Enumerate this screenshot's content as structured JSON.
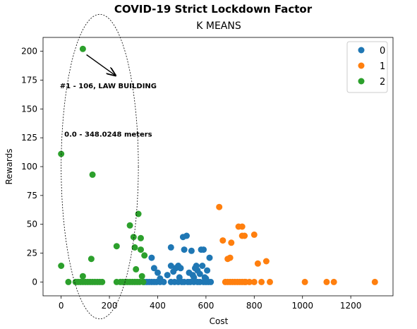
{
  "chart_data": {
    "type": "scatter",
    "title": "COVID-19 Strict Lockdown Factor",
    "subtitle": "K MEANS",
    "xlabel": "Cost",
    "ylabel": "Rewards",
    "xlim": [
      -75,
      1375
    ],
    "ylim": [
      -12,
      212
    ],
    "xticks": [
      0,
      200,
      400,
      600,
      800,
      1000,
      1200
    ],
    "yticks": [
      0,
      25,
      50,
      75,
      100,
      125,
      150,
      175,
      200
    ],
    "grid": false,
    "legend_position": "top-right",
    "series": [
      {
        "name": "0",
        "color": "#1f77b4",
        "points": [
          [
            345,
            0
          ],
          [
            355,
            0
          ],
          [
            365,
            0
          ],
          [
            375,
            0
          ],
          [
            385,
            0
          ],
          [
            395,
            0
          ],
          [
            410,
            0
          ],
          [
            425,
            0
          ],
          [
            455,
            0
          ],
          [
            470,
            0
          ],
          [
            485,
            0
          ],
          [
            500,
            0
          ],
          [
            510,
            0
          ],
          [
            525,
            0
          ],
          [
            535,
            0
          ],
          [
            550,
            0
          ],
          [
            565,
            0
          ],
          [
            575,
            0
          ],
          [
            590,
            0
          ],
          [
            600,
            0
          ],
          [
            610,
            0
          ],
          [
            620,
            0
          ],
          [
            375,
            21
          ],
          [
            385,
            12
          ],
          [
            400,
            8
          ],
          [
            410,
            3
          ],
          [
            440,
            6
          ],
          [
            455,
            30
          ],
          [
            455,
            14
          ],
          [
            465,
            9
          ],
          [
            475,
            12
          ],
          [
            485,
            14
          ],
          [
            495,
            12
          ],
          [
            505,
            39
          ],
          [
            510,
            28
          ],
          [
            520,
            40
          ],
          [
            530,
            8
          ],
          [
            540,
            27
          ],
          [
            550,
            4
          ],
          [
            555,
            12
          ],
          [
            560,
            14
          ],
          [
            565,
            10
          ],
          [
            575,
            7
          ],
          [
            580,
            28
          ],
          [
            590,
            28
          ],
          [
            585,
            14
          ],
          [
            595,
            4
          ],
          [
            605,
            10
          ],
          [
            615,
            21
          ],
          [
            600,
            3
          ],
          [
            545,
            6
          ],
          [
            490,
            4
          ]
        ]
      },
      {
        "name": "1",
        "color": "#ff7f0e",
        "points": [
          [
            655,
            65
          ],
          [
            670,
            36
          ],
          [
            690,
            20
          ],
          [
            700,
            21
          ],
          [
            705,
            34
          ],
          [
            735,
            48
          ],
          [
            750,
            48
          ],
          [
            750,
            40
          ],
          [
            760,
            40
          ],
          [
            800,
            41
          ],
          [
            815,
            16
          ],
          [
            850,
            18
          ],
          [
            680,
            0
          ],
          [
            690,
            0
          ],
          [
            700,
            0
          ],
          [
            710,
            0
          ],
          [
            720,
            0
          ],
          [
            730,
            0
          ],
          [
            740,
            0
          ],
          [
            750,
            0
          ],
          [
            760,
            0
          ],
          [
            765,
            0
          ],
          [
            780,
            0
          ],
          [
            800,
            0
          ],
          [
            830,
            0
          ],
          [
            865,
            0
          ],
          [
            1010,
            0
          ],
          [
            1100,
            0
          ],
          [
            1130,
            0
          ],
          [
            1300,
            0
          ]
        ]
      },
      {
        "name": "2",
        "color": "#2ca02c",
        "points": [
          [
            90,
            202
          ],
          [
            0,
            111
          ],
          [
            130,
            93
          ],
          [
            0,
            14
          ],
          [
            125,
            20
          ],
          [
            230,
            31
          ],
          [
            285,
            49
          ],
          [
            300,
            39
          ],
          [
            305,
            30
          ],
          [
            320,
            59
          ],
          [
            330,
            38
          ],
          [
            330,
            28
          ],
          [
            345,
            23
          ],
          [
            310,
            11
          ],
          [
            335,
            5
          ],
          [
            90,
            5
          ],
          [
            30,
            0
          ],
          [
            60,
            0
          ],
          [
            70,
            0
          ],
          [
            80,
            0
          ],
          [
            90,
            0
          ],
          [
            100,
            0
          ],
          [
            110,
            0
          ],
          [
            120,
            0
          ],
          [
            130,
            0
          ],
          [
            140,
            0
          ],
          [
            150,
            0
          ],
          [
            160,
            0
          ],
          [
            170,
            0
          ],
          [
            230,
            0
          ],
          [
            245,
            0
          ],
          [
            255,
            0
          ],
          [
            265,
            0
          ],
          [
            275,
            0
          ],
          [
            285,
            0
          ],
          [
            295,
            0
          ],
          [
            305,
            0
          ],
          [
            315,
            0
          ],
          [
            325,
            0
          ],
          [
            340,
            0
          ]
        ]
      }
    ],
    "annotations": {
      "label_1": "#1 - 106, LAW BUILDING",
      "label_2": "0.0 - 348.0248 meters",
      "arrow_from": [
        105,
        197
      ],
      "arrow_to": [
        225,
        179
      ],
      "label_1_pos": [
        195,
        168
      ],
      "label_2_pos": [
        195,
        126
      ],
      "ellipse_center": [
        160,
        100
      ],
      "ellipse_radius": [
        160,
        132
      ]
    }
  }
}
